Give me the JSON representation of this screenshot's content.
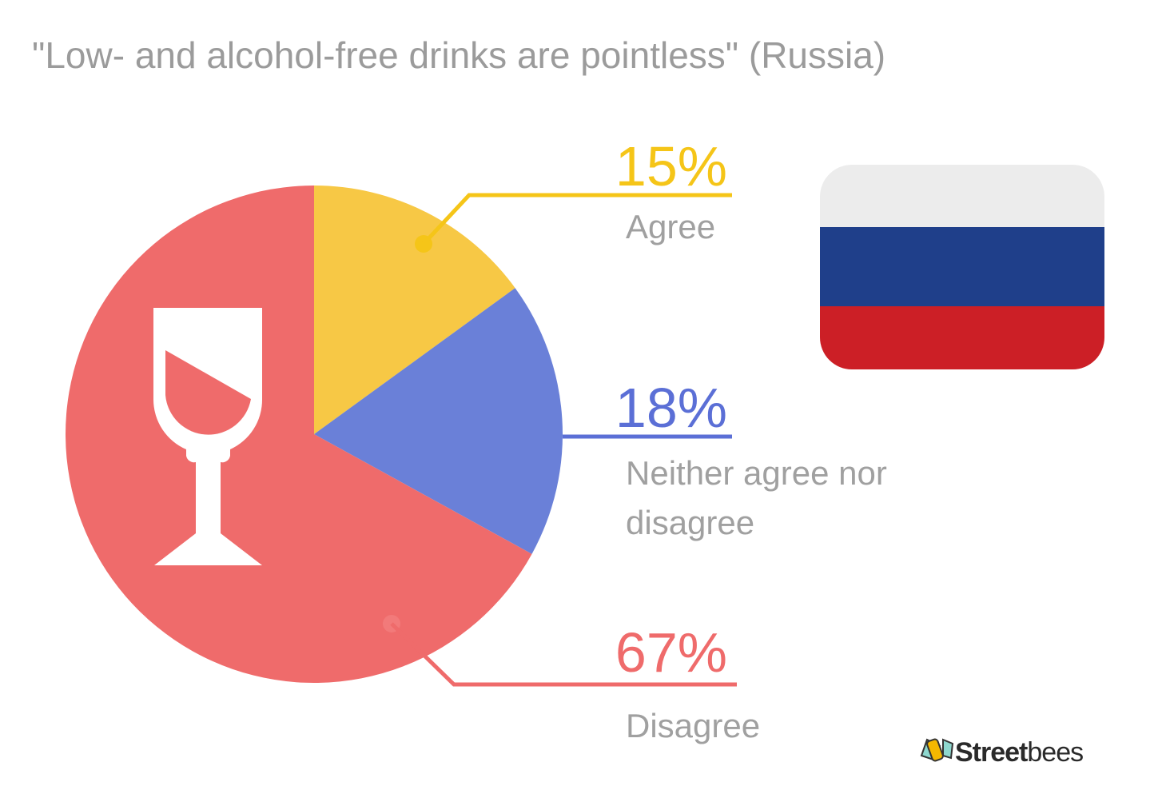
{
  "chart_data": {
    "type": "pie",
    "title": "\"Low- and alcohol-free drinks are pointless\" (Russia)",
    "slices": [
      {
        "label": "Agree",
        "value": 15,
        "value_label": "15%",
        "color": "#f7c845",
        "label_color": "#f5c518"
      },
      {
        "label": "Neither agree nor disagree",
        "label_lines": [
          "Neither agree nor",
          "disagree"
        ],
        "value": 18,
        "value_label": "18%",
        "color": "#6a80d8",
        "label_color": "#5b6fd6"
      },
      {
        "label": "Disagree",
        "value": 67,
        "value_label": "67%",
        "color": "#ef6b6b",
        "label_color": "#ef6b6b"
      }
    ],
    "center_icon": "wine-glass-icon",
    "flag": "russia-flag",
    "flag_colors": [
      "#ececec",
      "#1f3f8a",
      "#cc1f26"
    ]
  },
  "brand": {
    "name_bold": "Street",
    "name_light": "bees",
    "icon": "bee-icon"
  }
}
